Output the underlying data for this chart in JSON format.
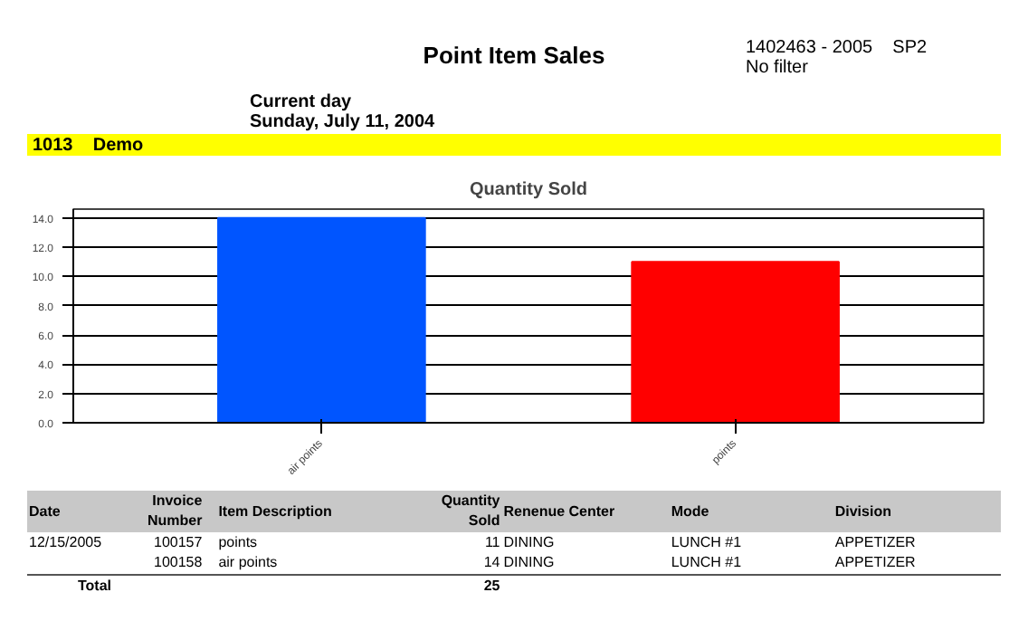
{
  "chart_data": {
    "type": "bar",
    "title": "Quantity Sold",
    "categories": [
      "air points",
      "points"
    ],
    "values": [
      14,
      11
    ],
    "colors": [
      "#0055ff",
      "#ff0000"
    ],
    "ylim": [
      0,
      14.6
    ],
    "yticks": [
      {
        "value": 0,
        "label": "0.0"
      },
      {
        "value": 2,
        "label": "2.0"
      },
      {
        "value": 4,
        "label": "4.0"
      },
      {
        "value": 6,
        "label": "6.0"
      },
      {
        "value": 8,
        "label": "8.0"
      },
      {
        "value": 10,
        "label": "10.0"
      },
      {
        "value": 12,
        "label": "12.0"
      },
      {
        "value": 14,
        "label": "14.0"
      }
    ],
    "grid": "y",
    "annotations": [
      "Point Item Sales",
      "1402463 - 2005    SP2",
      "No filter",
      "Current day",
      "Sunday, July 11, 2004",
      "1013    Demo",
      "Date\tInvoice Number\tItem Description\tQuantity Sold\tRenenue Center\tMode\tDivision",
      "12/15/2005\t100157\tpoints\t11\tDINING\tLUNCH #1\tAPPETIZER",
      "\t100158\tair points\t14\tDINING\tLUNCH #1\tAPPETIZER",
      "Total\t\t\t25\t\t\t"
    ]
  }
}
